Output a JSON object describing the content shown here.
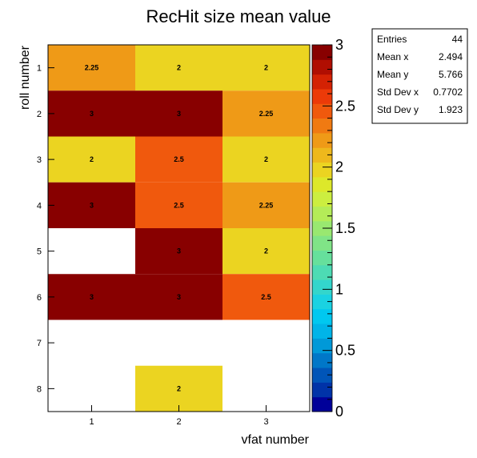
{
  "chart_data": {
    "type": "heatmap",
    "title": "RecHit size mean value",
    "xlabel": "vfat number",
    "ylabel": "roll number",
    "x_categories": [
      "1",
      "2",
      "3"
    ],
    "y_categories": [
      "1",
      "2",
      "3",
      "4",
      "5",
      "6",
      "7",
      "8"
    ],
    "zlim": [
      0,
      3
    ],
    "z_ticks": [
      "0",
      "0.5",
      "1",
      "1.5",
      "2",
      "2.5",
      "3"
    ],
    "cells": [
      {
        "x": 1,
        "y": 1,
        "value": 2.25,
        "label": "2.25"
      },
      {
        "x": 2,
        "y": 1,
        "value": 2,
        "label": "2"
      },
      {
        "x": 3,
        "y": 1,
        "value": 2,
        "label": "2"
      },
      {
        "x": 1,
        "y": 2,
        "value": 3,
        "label": "3"
      },
      {
        "x": 2,
        "y": 2,
        "value": 3,
        "label": "3"
      },
      {
        "x": 3,
        "y": 2,
        "value": 2.25,
        "label": "2.25"
      },
      {
        "x": 1,
        "y": 3,
        "value": 2,
        "label": "2"
      },
      {
        "x": 2,
        "y": 3,
        "value": 2.5,
        "label": "2.5"
      },
      {
        "x": 3,
        "y": 3,
        "value": 2,
        "label": "2"
      },
      {
        "x": 1,
        "y": 4,
        "value": 3,
        "label": "3"
      },
      {
        "x": 2,
        "y": 4,
        "value": 2.5,
        "label": "2.5"
      },
      {
        "x": 3,
        "y": 4,
        "value": 2.25,
        "label": "2.25"
      },
      {
        "x": 2,
        "y": 5,
        "value": 3,
        "label": "3"
      },
      {
        "x": 3,
        "y": 5,
        "value": 2,
        "label": "2"
      },
      {
        "x": 1,
        "y": 6,
        "value": 3,
        "label": "3"
      },
      {
        "x": 2,
        "y": 6,
        "value": 3,
        "label": "3"
      },
      {
        "x": 3,
        "y": 6,
        "value": 2.5,
        "label": "2.5"
      },
      {
        "x": 2,
        "y": 8,
        "value": 2,
        "label": "2"
      }
    ],
    "stats": [
      {
        "name": "Entries",
        "value": "44"
      },
      {
        "name": "Mean x",
        "value": "2.494"
      },
      {
        "name": "Mean y",
        "value": "5.766"
      },
      {
        "name": "Std Dev x",
        "value": "0.7702"
      },
      {
        "name": "Std Dev y",
        "value": "1.923"
      }
    ],
    "palette": [
      "#000099",
      "#0033a8",
      "#0055b8",
      "#0077c8",
      "#0099d8",
      "#00b4e8",
      "#00c8f0",
      "#1ad2e2",
      "#33d6cc",
      "#4ddbb4",
      "#66e09c",
      "#80e487",
      "#99e870",
      "#b4ec58",
      "#ccee40",
      "#dde82a",
      "#ebd421",
      "#eeb81c",
      "#ef9a17",
      "#f07a12",
      "#f0590d",
      "#ec3a08",
      "#d42204",
      "#b00e02",
      "#880000"
    ]
  }
}
